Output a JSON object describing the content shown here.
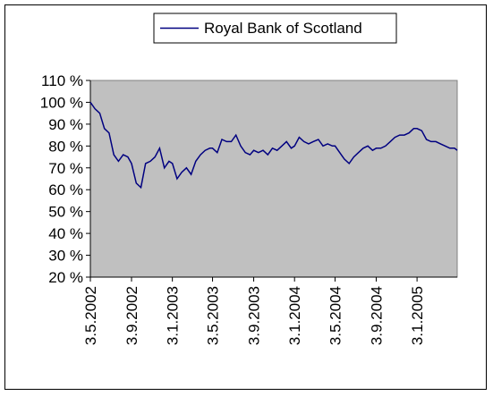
{
  "chart_data": {
    "type": "line",
    "title": "",
    "xlabel": "",
    "ylabel": "",
    "y_unit": "%",
    "ylim": [
      20,
      110
    ],
    "y_ticks": [
      20,
      30,
      40,
      50,
      60,
      70,
      80,
      90,
      100,
      110
    ],
    "y_tick_labels": [
      "20 %",
      "30 %",
      "40 %",
      "50 %",
      "60 %",
      "70 %",
      "80 %",
      "90 %",
      "100 %",
      "110 %"
    ],
    "x_tick_labels": [
      "3.5.2002",
      "3.9.2002",
      "3.1.2003",
      "3.5.2003",
      "3.9.2003",
      "3.1.2004",
      "3.5.2004",
      "3.9.2004",
      "3.1.2005"
    ],
    "xlim": [
      "3.5.2002",
      "3.5.2005"
    ],
    "grid": false,
    "plot_background": "#c0c0c0",
    "legend_position": "top",
    "series": [
      {
        "name": "Royal Bank of Scotland",
        "color": "#000080",
        "points": [
          [
            "3.5.2002",
            100
          ],
          [
            "17.5.2002",
            97
          ],
          [
            "31.5.2002",
            95
          ],
          [
            "14.6.2002",
            88
          ],
          [
            "28.6.2002",
            86
          ],
          [
            "12.7.2002",
            76
          ],
          [
            "26.7.2002",
            73
          ],
          [
            "9.8.2002",
            76
          ],
          [
            "23.8.2002",
            75
          ],
          [
            "3.9.2002",
            72
          ],
          [
            "17.9.2002",
            63
          ],
          [
            "1.10.2002",
            61
          ],
          [
            "15.10.2002",
            72
          ],
          [
            "29.10.2002",
            73
          ],
          [
            "12.11.2002",
            75
          ],
          [
            "26.11.2002",
            79
          ],
          [
            "10.12.2002",
            70
          ],
          [
            "24.12.2002",
            73
          ],
          [
            "3.1.2003",
            72
          ],
          [
            "17.1.2003",
            65
          ],
          [
            "31.1.2003",
            68
          ],
          [
            "14.2.2003",
            70
          ],
          [
            "28.2.2003",
            67
          ],
          [
            "14.3.2003",
            73
          ],
          [
            "28.3.2003",
            76
          ],
          [
            "11.4.2003",
            78
          ],
          [
            "25.4.2003",
            79
          ],
          [
            "3.5.2003",
            79
          ],
          [
            "17.5.2003",
            77
          ],
          [
            "31.5.2003",
            83
          ],
          [
            "14.6.2003",
            82
          ],
          [
            "28.6.2003",
            82
          ],
          [
            "12.7.2003",
            85
          ],
          [
            "26.7.2003",
            80
          ],
          [
            "9.8.2003",
            77
          ],
          [
            "23.8.2003",
            76
          ],
          [
            "3.9.2003",
            78
          ],
          [
            "17.9.2003",
            77
          ],
          [
            "1.10.2003",
            78
          ],
          [
            "15.10.2003",
            76
          ],
          [
            "29.10.2003",
            79
          ],
          [
            "12.11.2003",
            78
          ],
          [
            "26.11.2003",
            80
          ],
          [
            "10.12.2003",
            82
          ],
          [
            "24.12.2003",
            79
          ],
          [
            "3.1.2004",
            80
          ],
          [
            "17.1.2004",
            84
          ],
          [
            "31.1.2004",
            82
          ],
          [
            "14.2.2004",
            81
          ],
          [
            "28.2.2004",
            82
          ],
          [
            "14.3.2004",
            83
          ],
          [
            "28.3.2004",
            80
          ],
          [
            "11.4.2004",
            81
          ],
          [
            "25.4.2004",
            80
          ],
          [
            "3.5.2004",
            80
          ],
          [
            "17.5.2004",
            77
          ],
          [
            "31.5.2004",
            74
          ],
          [
            "14.6.2004",
            72
          ],
          [
            "28.6.2004",
            75
          ],
          [
            "12.7.2004",
            77
          ],
          [
            "26.7.2004",
            79
          ],
          [
            "9.8.2004",
            80
          ],
          [
            "23.8.2004",
            78
          ],
          [
            "3.9.2004",
            79
          ],
          [
            "17.9.2004",
            79
          ],
          [
            "1.10.2004",
            80
          ],
          [
            "15.10.2004",
            82
          ],
          [
            "29.10.2004",
            84
          ],
          [
            "12.11.2004",
            85
          ],
          [
            "26.11.2004",
            85
          ],
          [
            "10.12.2004",
            86
          ],
          [
            "24.12.2004",
            88
          ],
          [
            "3.1.2005",
            88
          ],
          [
            "17.1.2005",
            87
          ],
          [
            "31.1.2005",
            83
          ],
          [
            "14.2.2005",
            82
          ],
          [
            "28.2.2005",
            82
          ],
          [
            "14.3.2005",
            81
          ],
          [
            "28.3.2005",
            80
          ],
          [
            "11.4.2005",
            79
          ],
          [
            "25.4.2005",
            79
          ],
          [
            "3.5.2005",
            78
          ]
        ]
      }
    ]
  }
}
